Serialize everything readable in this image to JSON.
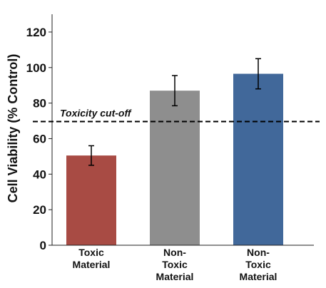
{
  "chart_data": {
    "type": "bar",
    "title": "",
    "xlabel": "",
    "ylabel": "Cell Viability (% Control)",
    "ylim": [
      0,
      130
    ],
    "yticks": [
      0,
      20,
      40,
      60,
      80,
      100,
      120
    ],
    "categories": [
      [
        "Toxic",
        "Material"
      ],
      [
        "Non-",
        "Toxic",
        "Material"
      ],
      [
        "Non-",
        "Toxic",
        "Material"
      ]
    ],
    "values": [
      50.5,
      87,
      96.5
    ],
    "errors": [
      5.5,
      8.5,
      8.5
    ],
    "colors": [
      "#a84b44",
      "#8e8e8e",
      "#41689a"
    ],
    "reference_line": {
      "value": 70,
      "label": "Toxicity cut-off",
      "style": "dashed"
    },
    "grid": false,
    "legend": "none"
  }
}
